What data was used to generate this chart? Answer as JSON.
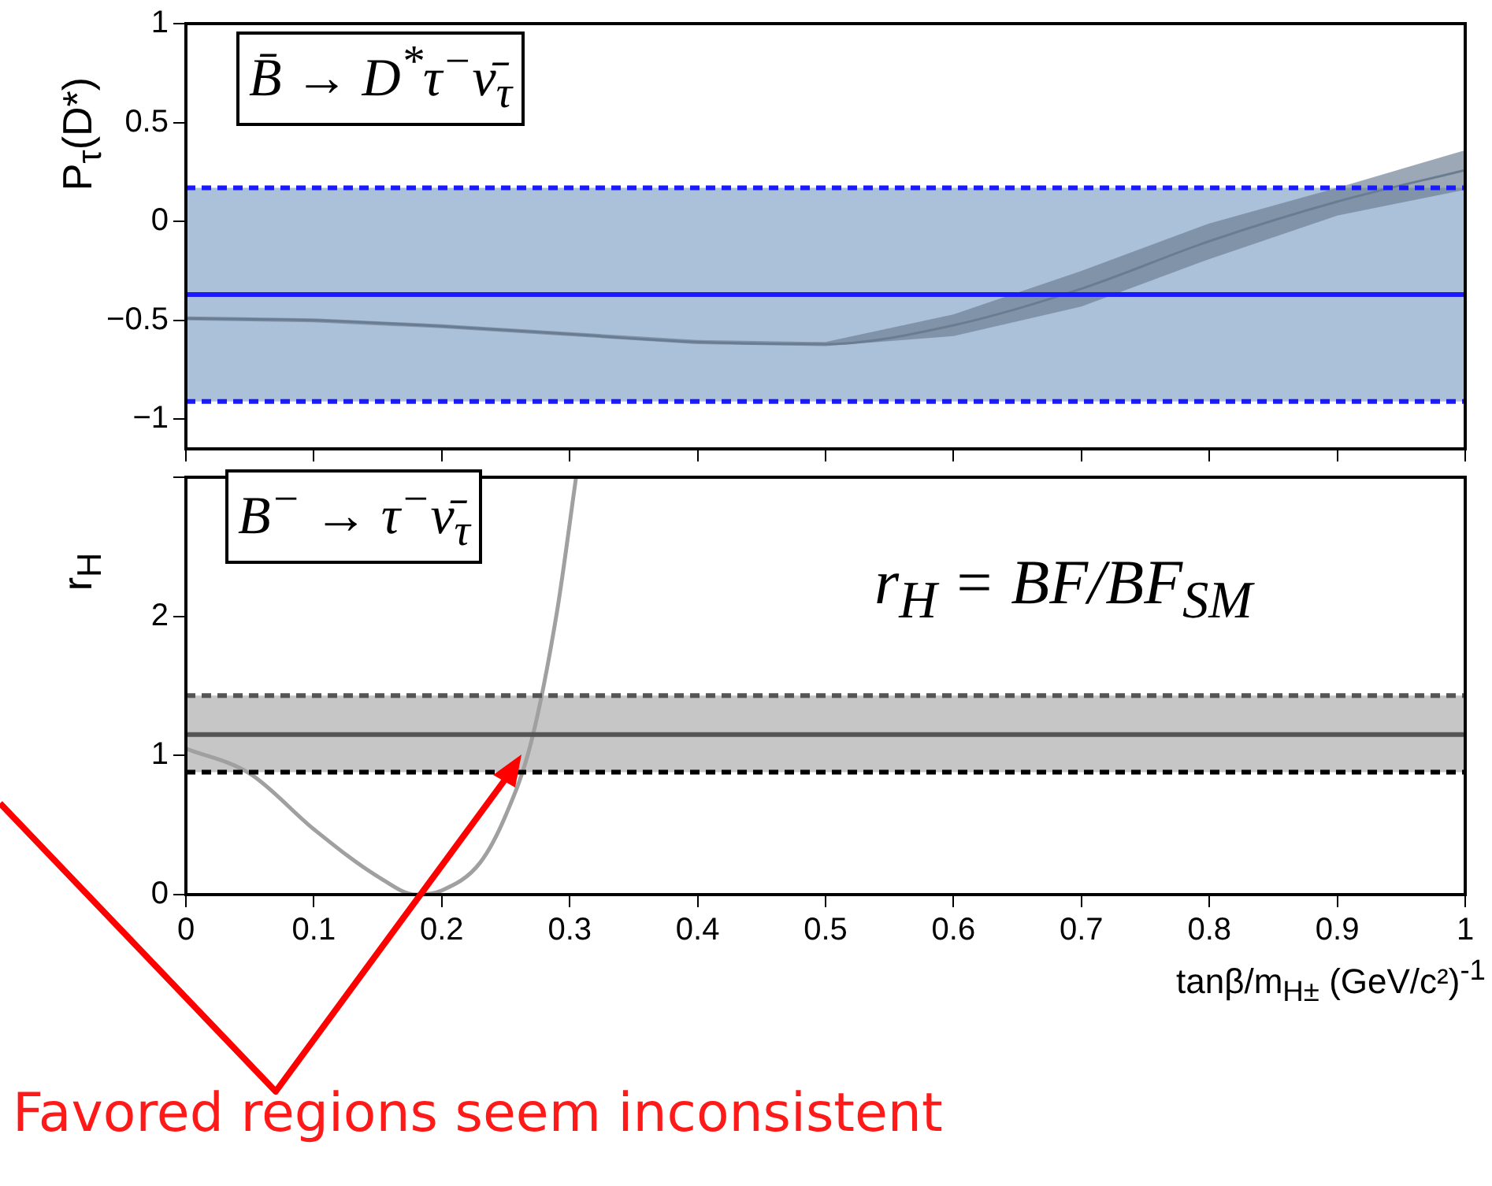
{
  "chart_data": [
    {
      "type": "line",
      "ylabel": "P$_{τ}$(D*)",
      "xlim": [
        0,
        1
      ],
      "xticks": [
        0,
        0.1,
        0.2,
        0.3,
        0.4,
        0.5,
        0.6,
        0.7,
        0.8,
        0.9,
        1
      ],
      "ylim": [
        -1.15,
        1
      ],
      "yticks": [
        {
          "value": -1,
          "label": "−1"
        },
        {
          "value": -0.5,
          "label": "−0.5"
        },
        0,
        0.5,
        1
      ],
      "tick_labels": "y",
      "grid": false,
      "legend": false,
      "marker": "none",
      "series": [
        {
          "color": "#6b7d91",
          "x": [
            0,
            0.1,
            0.2,
            0.3,
            0.4,
            0.5,
            0.6,
            0.7,
            0.8,
            0.9,
            1
          ],
          "values": [
            -0.49,
            -0.5,
            -0.53,
            -0.57,
            -0.61,
            -0.62,
            -0.525,
            -0.34,
            -0.1,
            0.1,
            0.26
          ],
          "lower": [
            -0.5,
            -0.51,
            -0.54,
            -0.58,
            -0.62,
            -0.63,
            -0.58,
            -0.43,
            -0.19,
            0.03,
            0.16
          ],
          "upper": [
            -0.48,
            -0.49,
            -0.52,
            -0.56,
            -0.6,
            -0.61,
            -0.47,
            -0.25,
            -0.01,
            0.17,
            0.36
          ]
        }
      ],
      "bands": [
        {
          "axis": "y",
          "from": -0.91,
          "to": 0.17,
          "color": "#abc1d9"
        }
      ],
      "ref_lines": [
        {
          "axis": "y",
          "value": 0.17,
          "color": "#1a1aff",
          "line_style": "dashed"
        },
        {
          "axis": "y",
          "value": -0.91,
          "color": "#1a1aff",
          "line_style": "dashed"
        },
        {
          "axis": "y",
          "value": -0.37,
          "color": "#1a1aff",
          "line_style": "solid"
        }
      ],
      "annotations": [
        "B̄ → D$^{*}$τ$^{−}$ν̄$_{τ}$"
      ]
    },
    {
      "type": "line",
      "ylabel": "r$_{H}$",
      "xlabel": "tanβ/m$_{H±}$ (GeV/c²)$^{-1}$",
      "xlim": [
        0,
        1
      ],
      "xticks": [
        0,
        0.1,
        0.2,
        0.3,
        0.4,
        0.5,
        0.6,
        0.7,
        0.8,
        0.9,
        1
      ],
      "ylim": [
        0,
        3
      ],
      "yticks": [
        0,
        1,
        2,
        {
          "value": 3,
          "label": null
        }
      ],
      "grid": false,
      "legend": false,
      "marker": "none",
      "series": [
        {
          "color": "#a0a0a0",
          "x": [
            0,
            0.05,
            0.1,
            0.15,
            0.18,
            0.2,
            0.23,
            0.25,
            0.27,
            0.29,
            0.305
          ],
          "values": [
            1.05,
            0.87,
            0.47,
            0.13,
            0,
            0.03,
            0.23,
            0.57,
            1.1,
            2.03,
            3
          ]
        }
      ],
      "bands": [
        {
          "axis": "y",
          "from": 0.88,
          "to": 1.43,
          "color": "#c6c6c6"
        }
      ],
      "ref_lines": [
        {
          "axis": "y",
          "value": 1.43,
          "color": "#555555",
          "line_style": "dashed"
        },
        {
          "axis": "y",
          "value": 0.88,
          "color": "#000000",
          "line_style": "dashed"
        },
        {
          "axis": "y",
          "value": 1.15,
          "color": "#555555",
          "line_style": "solid"
        }
      ],
      "annotations": [
        "B$^{−}$ → τ$^{−}$ν̄$_{τ}$",
        "r$_{H}$ = BF/BF$_{SM}$",
        "Favored regions seem inconsistent"
      ]
    }
  ]
}
